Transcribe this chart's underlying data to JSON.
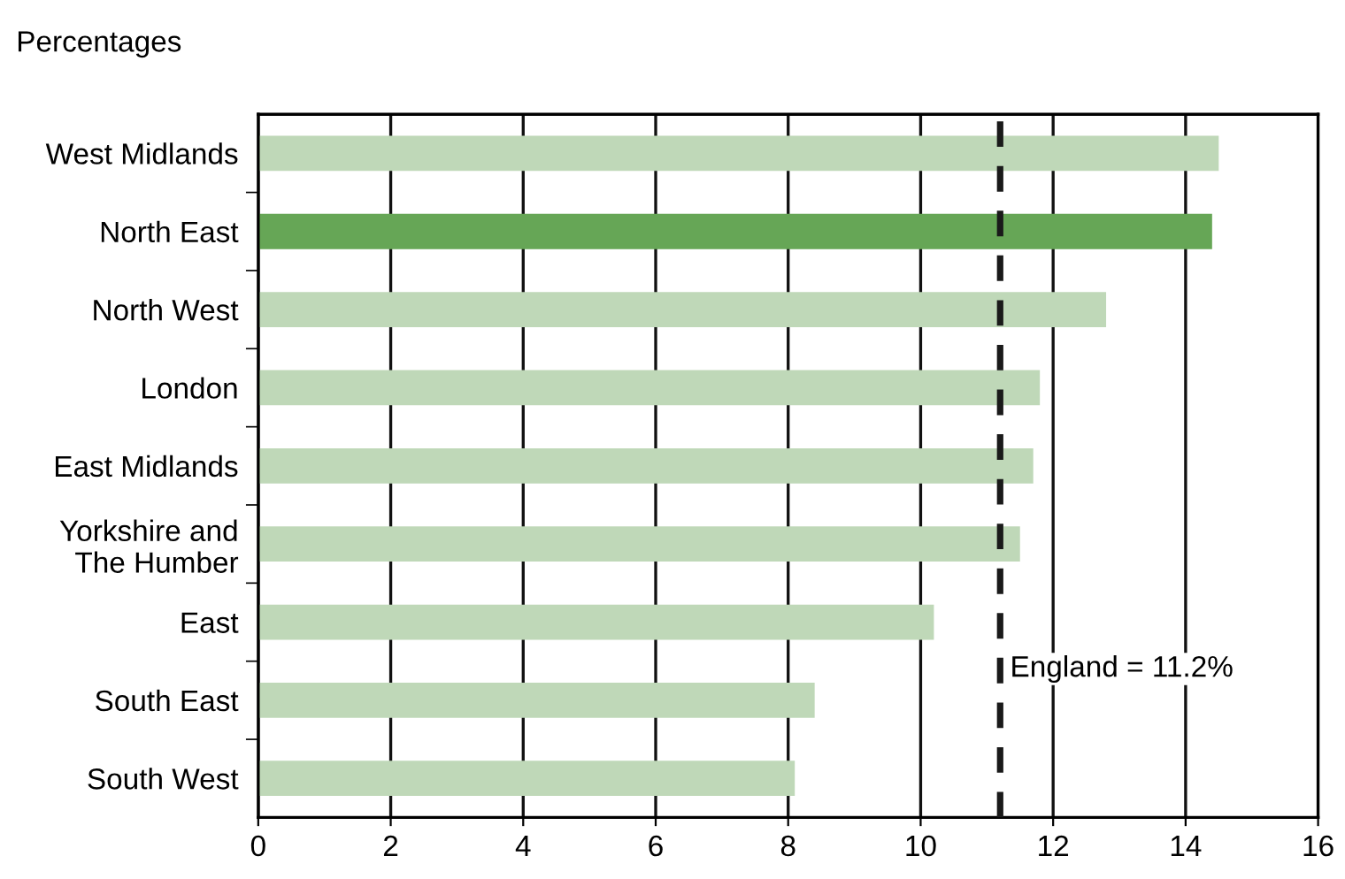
{
  "chart_data": {
    "type": "bar",
    "orientation": "horizontal",
    "title": "Percentages",
    "categories": [
      "West Midlands",
      "North East",
      "North West",
      "London",
      "East Midlands",
      "Yorkshire and\nThe Humber",
      "East",
      "South East",
      "South West"
    ],
    "values": [
      14.5,
      14.4,
      12.8,
      11.8,
      11.7,
      11.5,
      10.2,
      8.4,
      8.1
    ],
    "colors": [
      "#bfd8b8",
      "#66a656",
      "#bfd8b8",
      "#bfd8b8",
      "#bfd8b8",
      "#bfd8b8",
      "#bfd8b8",
      "#bfd8b8",
      "#bfd8b8"
    ],
    "xlim": [
      0,
      16
    ],
    "xticks": [
      0,
      2,
      4,
      6,
      8,
      10,
      12,
      14,
      16
    ],
    "grid": "x",
    "ref_lines": [
      {
        "axis": "x",
        "value": 11.2,
        "label": "England = 11.2%",
        "color": "#1a1a1a",
        "line_style": "dashed"
      }
    ]
  }
}
